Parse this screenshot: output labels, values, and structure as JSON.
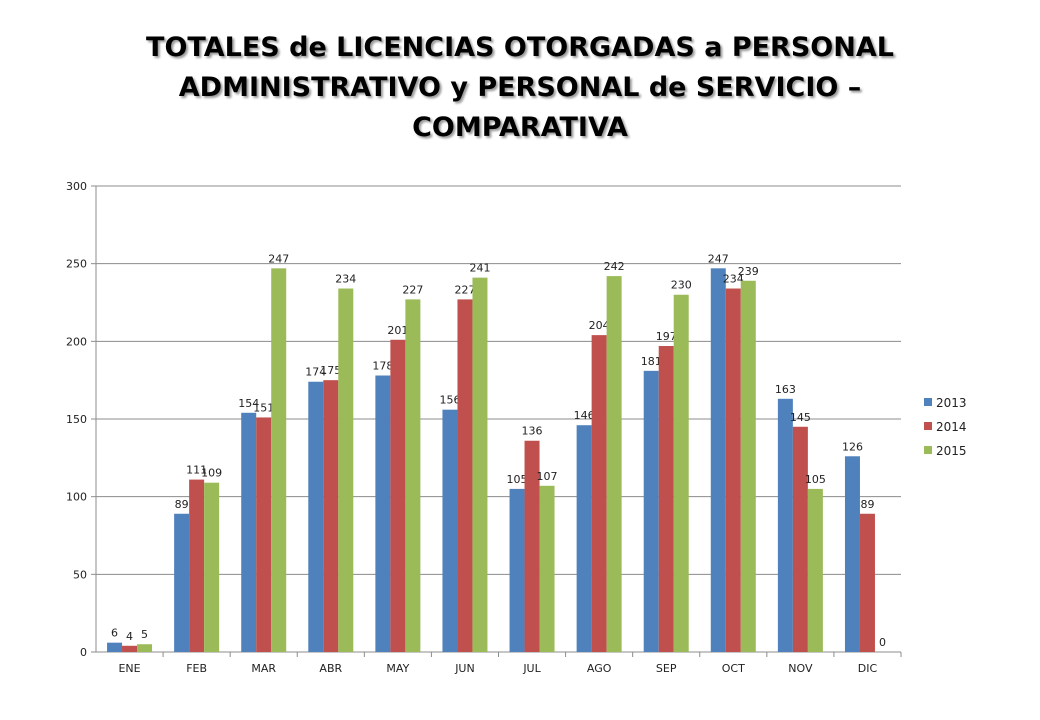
{
  "chart_data": {
    "type": "bar",
    "title_lines": [
      "TOTALES de LICENCIAS  OTORGADAS a PERSONAL",
      "ADMINISTRATIVO  y PERSONAL de SERVICIO –",
      "COMPARATIVA"
    ],
    "categories": [
      "ENE",
      "FEB",
      "MAR",
      "ABR",
      "MAY",
      "JUN",
      "JUL",
      "AGO",
      "SEP",
      "OCT",
      "NOV",
      "DIC"
    ],
    "series": [
      {
        "name": "2013",
        "color": "#4F81BD",
        "values": [
          6,
          89,
          154,
          174,
          178,
          156,
          105,
          146,
          181,
          247,
          163,
          126
        ]
      },
      {
        "name": "2014",
        "color": "#C0504D",
        "values": [
          4,
          111,
          151,
          175,
          201,
          227,
          136,
          204,
          197,
          234,
          145,
          89
        ]
      },
      {
        "name": "2015",
        "color": "#9BBB59",
        "values": [
          5,
          109,
          247,
          234,
          227,
          241,
          107,
          242,
          230,
          239,
          105,
          0
        ]
      }
    ],
    "ylim": [
      0,
      300
    ],
    "yticks": [
      0,
      50,
      100,
      150,
      200,
      250,
      300
    ],
    "grid": true,
    "legend": "right"
  }
}
